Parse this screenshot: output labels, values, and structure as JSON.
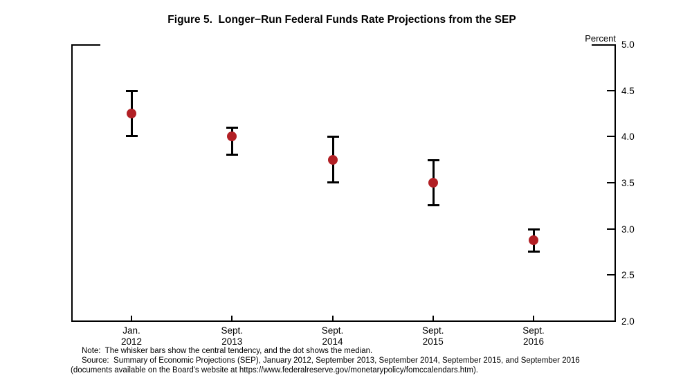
{
  "title": "Figure 5.  Longer−Run Federal Funds Rate Projections from the SEP",
  "axis": {
    "unit_label": "Percent"
  },
  "notes": {
    "note": "Note:  The whisker bars show the central tendency, and the dot shows the median.",
    "source": "Source:  Summary of Economic Projections (SEP), January 2012, September 2013, September 2014, September 2015, and September 2016",
    "source2": "(documents available on the Board's website at https://www.federalreserve.gov/monetarypolicy/fomccalendars.htm)."
  },
  "chart_data": {
    "type": "scatter",
    "subtype": "median-dot-with-central-tendency-whiskers",
    "title": "Figure 5.  Longer−Run Federal Funds Rate Projections from the SEP",
    "categories": [
      [
        "Jan.",
        "2012"
      ],
      [
        "Sept.",
        "2013"
      ],
      [
        "Sept.",
        "2014"
      ],
      [
        "Sept.",
        "2015"
      ],
      [
        "Sept.",
        "2016"
      ]
    ],
    "series": [
      {
        "name": "median",
        "values": [
          4.25,
          4.0,
          3.75,
          3.5,
          2.875
        ]
      },
      {
        "name": "central_tendency_low",
        "values": [
          4.0,
          3.8,
          3.5,
          3.25,
          2.75
        ]
      },
      {
        "name": "central_tendency_high",
        "values": [
          4.5,
          4.1,
          4.0,
          3.75,
          3.0
        ]
      }
    ],
    "xlabel": "",
    "ylabel": "Percent",
    "ylim": [
      2.0,
      5.0
    ],
    "y_ticks": [
      5.0,
      4.5,
      4.0,
      3.5,
      3.0,
      2.5,
      2.0
    ],
    "y_axis_side": "right",
    "grid": false,
    "legend": "none",
    "marker_color": "#b22025",
    "whisker_color": "#000000"
  }
}
